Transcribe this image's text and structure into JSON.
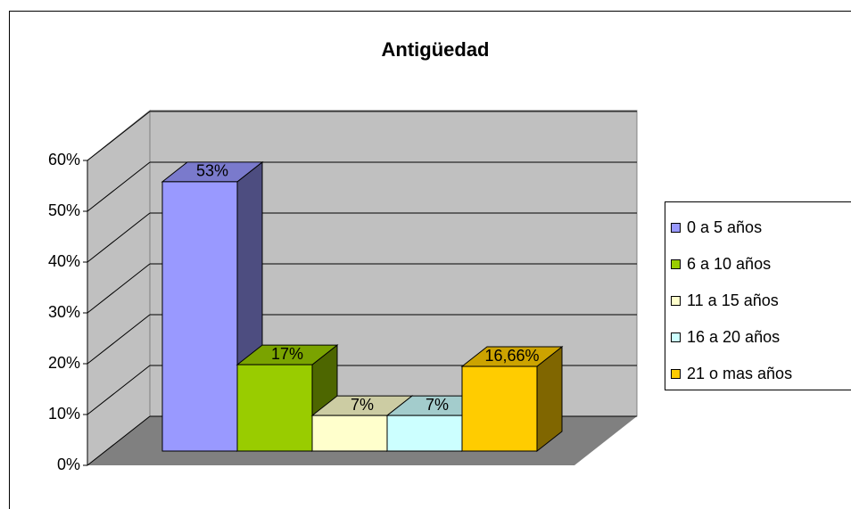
{
  "chart_data": {
    "type": "bar3d",
    "title": "Antigüedad",
    "categories": [
      "0 a 5 años",
      "6 a 10 años",
      "11 a 15 años",
      "16 a 20 años",
      "21 o mas años"
    ],
    "values": [
      53,
      17,
      7,
      7,
      16.66
    ],
    "value_labels": [
      "53%",
      "17%",
      "7%",
      "7%",
      "16,66%"
    ],
    "colors": [
      "#9999ff",
      "#99cc00",
      "#ffffcc",
      "#ccffff",
      "#ffcc00"
    ],
    "ylim": [
      0,
      60
    ],
    "yticks": [
      {
        "value": 0,
        "label": "0%"
      },
      {
        "value": 10,
        "label": "10%"
      },
      {
        "value": 20,
        "label": "20%"
      },
      {
        "value": 30,
        "label": "30%"
      },
      {
        "value": 40,
        "label": "40%"
      },
      {
        "value": 50,
        "label": "50%"
      },
      {
        "value": 60,
        "label": "60%"
      }
    ],
    "grid": true,
    "legend": "right"
  }
}
